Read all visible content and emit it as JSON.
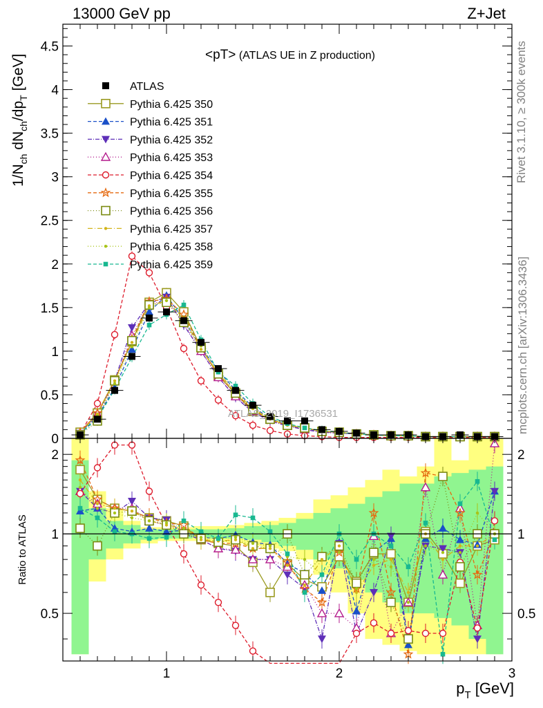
{
  "header": {
    "left": "13000 GeV pp",
    "right": "Z+Jet",
    "side_top": "Rivet 3.1.10, ≥ 300k events",
    "side_bottom": "mcplots.cern.ch [arXiv:1306.3436]",
    "watermark": "ATLAS_2019_I1736531"
  },
  "main_panel": {
    "title_main": "<pT>",
    "title_sub": " (ATLAS UE in Z production)",
    "ylabel": "1/N_ch dN_ch/dp_T [GeV]",
    "ylim": [
      0,
      4.75
    ],
    "yticks": [
      "0",
      "0.5",
      "1",
      "1.5",
      "2",
      "2.5",
      "3",
      "3.5",
      "4",
      "4.5"
    ]
  },
  "ratio_panel": {
    "ylabel": "Ratio to ATLAS",
    "ylim": [
      0.33,
      2.3
    ],
    "yticks": [
      "0.5",
      "1",
      "2"
    ]
  },
  "xaxis": {
    "label": "p_T [GeV]",
    "xlim": [
      0.4,
      3.0
    ],
    "ticks": [
      "1",
      "2",
      "3"
    ]
  },
  "legend": [
    "ATLAS",
    "Pythia 6.425 350",
    "Pythia 6.425 351",
    "Pythia 6.425 352",
    "Pythia 6.425 353",
    "Pythia 6.425 354",
    "Pythia 6.425 355",
    "Pythia 6.425 356",
    "Pythia 6.425 357",
    "Pythia 6.425 358",
    "Pythia 6.425 359"
  ],
  "chart_data": {
    "type": "scatter",
    "x": [
      0.5,
      0.6,
      0.7,
      0.8,
      0.9,
      1.0,
      1.1,
      1.2,
      1.3,
      1.4,
      1.5,
      1.6,
      1.7,
      1.8,
      1.9,
      2.0,
      2.1,
      2.2,
      2.3,
      2.4,
      2.5,
      2.6,
      2.7,
      2.8,
      2.9
    ],
    "data": {
      "name": "ATLAS",
      "values": [
        0.04,
        0.22,
        0.55,
        0.94,
        1.38,
        1.45,
        1.35,
        1.1,
        0.8,
        0.55,
        0.38,
        0.25,
        0.2,
        0.2,
        0.1,
        0.08,
        0.06,
        0.04,
        0.04,
        0.04,
        0.02,
        0.02,
        0.04,
        0.02,
        0.02
      ]
    },
    "series": [
      {
        "name": "Pythia 6.425 350",
        "color": "#9a9a20",
        "dash": "",
        "marker": "square-open",
        "values": [
          0.07,
          0.29,
          0.67,
          1.11,
          1.56,
          1.67,
          1.45,
          1.04,
          0.72,
          0.51,
          0.31,
          0.22,
          0.15,
          0.12,
          0.08,
          0.07,
          0.05,
          0.04,
          0.03,
          0.03,
          0.02,
          0.02,
          0.02,
          0.02,
          0.02
        ]
      },
      {
        "name": "Pythia 6.425 351",
        "color": "#1a50c8",
        "dash": "5,3",
        "marker": "triangle-up",
        "values": [
          0.05,
          0.25,
          0.58,
          1.02,
          1.45,
          1.64,
          1.36,
          1.04,
          0.78,
          0.55,
          0.36,
          0.23,
          0.15,
          0.11,
          0.08,
          0.06,
          0.05,
          0.04,
          0.03,
          0.03,
          0.02,
          0.02,
          0.02,
          0.02,
          0.02
        ]
      },
      {
        "name": "Pythia 6.425 352",
        "color": "#5e2fb8",
        "dash": "6,2,1,2",
        "marker": "triangle-down",
        "values": [
          0.06,
          0.27,
          0.66,
          1.27,
          1.55,
          1.62,
          1.3,
          1.0,
          0.7,
          0.47,
          0.3,
          0.2,
          0.14,
          0.1,
          0.07,
          0.06,
          0.05,
          0.04,
          0.03,
          0.03,
          0.02,
          0.02,
          0.02,
          0.02,
          0.02
        ]
      },
      {
        "name": "Pythia 6.425 353",
        "color": "#b31a8c",
        "dash": "1,3",
        "marker": "triangle-open",
        "values": [
          0.06,
          0.28,
          0.65,
          1.18,
          1.54,
          1.58,
          1.32,
          1.0,
          0.7,
          0.48,
          0.31,
          0.21,
          0.15,
          0.1,
          0.07,
          0.06,
          0.05,
          0.04,
          0.03,
          0.03,
          0.02,
          0.02,
          0.02,
          0.02,
          0.02
        ]
      },
      {
        "name": "Pythia 6.425 354",
        "color": "#dd1a2a",
        "dash": "5,3",
        "marker": "circle-open",
        "values": [
          0.05,
          0.4,
          1.19,
          2.09,
          1.9,
          1.5,
          1.03,
          0.66,
          0.44,
          0.26,
          0.15,
          0.09,
          0.05,
          0.03,
          0.02,
          0.01,
          0.01,
          0.01,
          0.01,
          0.01,
          0.01,
          0.01,
          0.01,
          0.01,
          0.01
        ]
      },
      {
        "name": "Pythia 6.425 355",
        "color": "#e56a10",
        "dash": "5,3",
        "marker": "star",
        "values": [
          0.07,
          0.29,
          0.66,
          1.14,
          1.57,
          1.6,
          1.42,
          1.03,
          0.73,
          0.51,
          0.33,
          0.21,
          0.15,
          0.12,
          0.08,
          0.07,
          0.05,
          0.04,
          0.03,
          0.03,
          0.02,
          0.02,
          0.02,
          0.02,
          0.02
        ]
      },
      {
        "name": "Pythia 6.425 356",
        "color": "#7a8a10",
        "dash": "1,3",
        "marker": "square-open",
        "values": [
          0.04,
          0.2,
          0.66,
          1.12,
          1.53,
          1.56,
          1.33,
          1.04,
          0.74,
          0.52,
          0.33,
          0.22,
          0.15,
          0.12,
          0.08,
          0.07,
          0.05,
          0.04,
          0.03,
          0.03,
          0.02,
          0.02,
          0.02,
          0.02,
          0.02
        ]
      },
      {
        "name": "Pythia 6.425 357",
        "color": "#d2b418",
        "dash": "7,3,1,3",
        "marker": "dot",
        "values": [
          0.06,
          0.28,
          0.66,
          1.1,
          1.52,
          1.58,
          1.37,
          1.02,
          0.75,
          0.53,
          0.34,
          0.22,
          0.15,
          0.12,
          0.08,
          0.07,
          0.05,
          0.04,
          0.03,
          0.03,
          0.02,
          0.02,
          0.02,
          0.02,
          0.02
        ]
      },
      {
        "name": "Pythia 6.425 358",
        "color": "#a8c418",
        "dash": "1,3",
        "marker": "dot",
        "values": [
          0.06,
          0.26,
          0.63,
          1.05,
          1.5,
          1.58,
          1.38,
          1.06,
          0.76,
          0.54,
          0.35,
          0.23,
          0.16,
          0.12,
          0.08,
          0.07,
          0.05,
          0.04,
          0.03,
          0.03,
          0.02,
          0.02,
          0.02,
          0.02,
          0.02
        ]
      },
      {
        "name": "Pythia 6.425 359",
        "color": "#18b890",
        "dash": "5,3",
        "marker": "square",
        "values": [
          0.05,
          0.23,
          0.56,
          0.93,
          1.3,
          1.42,
          1.53,
          1.13,
          0.76,
          0.6,
          0.4,
          0.25,
          0.17,
          0.12,
          0.09,
          0.07,
          0.05,
          0.04,
          0.03,
          0.03,
          0.02,
          0.02,
          0.02,
          0.02,
          0.02
        ]
      }
    ],
    "ratio": {
      "x": [
        0.5,
        0.6,
        0.7,
        0.8,
        0.9,
        1.0,
        1.1,
        1.2,
        1.3,
        1.4,
        1.5,
        1.6,
        1.7,
        1.8,
        1.9,
        2.0,
        2.1,
        2.2,
        2.3,
        2.4,
        2.5,
        2.6,
        2.7,
        2.8,
        2.9
      ],
      "series": [
        {
          "name": "Pythia 6.425 350",
          "values": [
            1.75,
            1.35,
            1.25,
            1.22,
            1.15,
            1.12,
            1.07,
            0.95,
            0.92,
            0.9,
            0.78,
            0.6,
            0.77,
            0.67,
            0.63,
            0.82,
            0.66,
            0.84,
            0.84,
            0.55,
            1.02,
            0.84,
            0.65,
            0.9,
            0.95
          ]
        },
        {
          "name": "Pythia 6.425 351",
          "values": [
            1.22,
            1.25,
            1.05,
            1.02,
            1.05,
            1.02,
            1.03,
            0.97,
            0.96,
            0.99,
            0.93,
            0.91,
            0.77,
            0.71,
            0.61,
            0.93,
            0.51,
            0.85,
            0.96,
            0.38,
            0.96,
            1.05,
            0.95,
            0.91,
            1.45
          ]
        },
        {
          "name": "Pythia 6.425 352",
          "values": [
            1.45,
            1.25,
            1.2,
            1.33,
            1.15,
            1.13,
            1.0,
            0.95,
            0.88,
            0.86,
            0.8,
            0.8,
            0.7,
            0.62,
            0.4,
            0.92,
            0.42,
            0.6,
            0.98,
            0.4,
            0.9,
            0.88,
            0.85,
            0.4,
            1.45
          ]
        },
        {
          "name": "Pythia 6.425 353",
          "values": [
            1.45,
            1.3,
            1.25,
            1.25,
            1.12,
            1.08,
            1.03,
            0.95,
            0.88,
            0.87,
            0.8,
            0.8,
            0.75,
            0.64,
            0.5,
            0.5,
            0.44,
            0.98,
            0.42,
            0.55,
            1.5,
            0.7,
            1.25,
            0.45,
            2.2
          ]
        },
        {
          "name": "Pythia 6.425 354",
          "values": [
            1.42,
            1.78,
            2.17,
            2.17,
            1.45,
            1.08,
            0.84,
            0.64,
            0.55,
            0.45,
            0.36,
            0.3,
            0.25,
            0.2,
            0.18,
            0.15,
            0.42,
            0.46,
            0.42,
            0.43,
            0.42,
            0.42,
            0.78,
            0.44,
            1.12
          ]
        },
        {
          "name": "Pythia 6.425 355",
          "values": [
            1.9,
            1.35,
            1.25,
            1.22,
            1.15,
            1.1,
            1.08,
            0.95,
            0.92,
            0.92,
            0.88,
            0.88,
            0.78,
            0.62,
            0.55,
            0.85,
            0.62,
            1.2,
            0.6,
            0.35,
            1.7,
            1.65,
            1.2,
            0.7,
            1.0
          ]
        },
        {
          "name": "Pythia 6.425 356",
          "values": [
            1.05,
            0.9,
            1.2,
            1.22,
            1.12,
            1.08,
            1.0,
            0.96,
            0.93,
            0.95,
            0.9,
            0.88,
            1.0,
            0.7,
            0.82,
            0.9,
            0.65,
            0.85,
            0.55,
            0.4,
            1.0,
            1.65,
            0.75,
            1.0,
            1.0
          ]
        },
        {
          "name": "Pythia 6.425 357",
          "values": [
            1.6,
            1.3,
            1.25,
            1.22,
            1.12,
            1.08,
            1.05,
            0.95,
            0.94,
            0.95,
            0.88,
            0.88,
            0.76,
            0.64,
            0.8,
            0.9,
            0.6,
            0.76,
            0.8,
            0.6,
            1.0,
            0.8,
            0.9,
            0.9,
            1.0
          ]
        },
        {
          "name": "Pythia 6.425 358",
          "values": [
            1.5,
            1.25,
            1.2,
            1.15,
            1.12,
            1.1,
            1.05,
            0.97,
            0.96,
            0.97,
            0.92,
            0.9,
            0.82,
            0.8,
            0.7,
            0.85,
            0.62,
            0.8,
            0.75,
            0.55,
            0.9,
            0.85,
            0.85,
            1.2,
            1.0
          ]
        },
        {
          "name": "Pythia 6.425 359",
          "values": [
            1.25,
            1.15,
            1.02,
            1.0,
            0.96,
            0.97,
            1.12,
            1.02,
            0.96,
            1.18,
            1.15,
            1.02,
            0.84,
            0.6,
            0.7,
            1.0,
            0.8,
            1.0,
            0.9,
            0.75,
            1.1,
            0.35,
            1.3,
            1.58,
            0.95
          ]
        }
      ],
      "band_yellow": {
        "lo": [
          0.35,
          0.66,
          0.8,
          0.88,
          0.92,
          0.94,
          0.94,
          0.94,
          0.93,
          0.92,
          0.9,
          0.88,
          0.86,
          0.8,
          0.7,
          0.6,
          0.5,
          0.4,
          0.38,
          0.36,
          0.35,
          0.35,
          0.35,
          0.35,
          0.35
        ],
        "hi": [
          2.3,
          1.45,
          1.25,
          1.12,
          1.06,
          1.06,
          1.06,
          1.07,
          1.07,
          1.08,
          1.1,
          1.12,
          1.15,
          1.2,
          1.35,
          1.4,
          1.5,
          1.6,
          1.75,
          1.65,
          1.8,
          2.3,
          1.9,
          2.3,
          2.3
        ]
      },
      "band_green": {
        "lo": [
          0.35,
          0.8,
          0.88,
          0.92,
          0.95,
          0.96,
          0.96,
          0.97,
          0.96,
          0.96,
          0.95,
          0.93,
          0.9,
          0.87,
          0.8,
          0.74,
          0.67,
          0.6,
          0.55,
          0.5,
          0.5,
          0.48,
          0.45,
          0.4,
          0.35
        ],
        "hi": [
          1.9,
          1.25,
          1.12,
          1.08,
          1.04,
          1.04,
          1.04,
          1.04,
          1.04,
          1.05,
          1.07,
          1.08,
          1.1,
          1.14,
          1.2,
          1.25,
          1.3,
          1.38,
          1.45,
          1.55,
          1.55,
          1.65,
          1.7,
          1.75,
          1.8
        ]
      }
    }
  }
}
